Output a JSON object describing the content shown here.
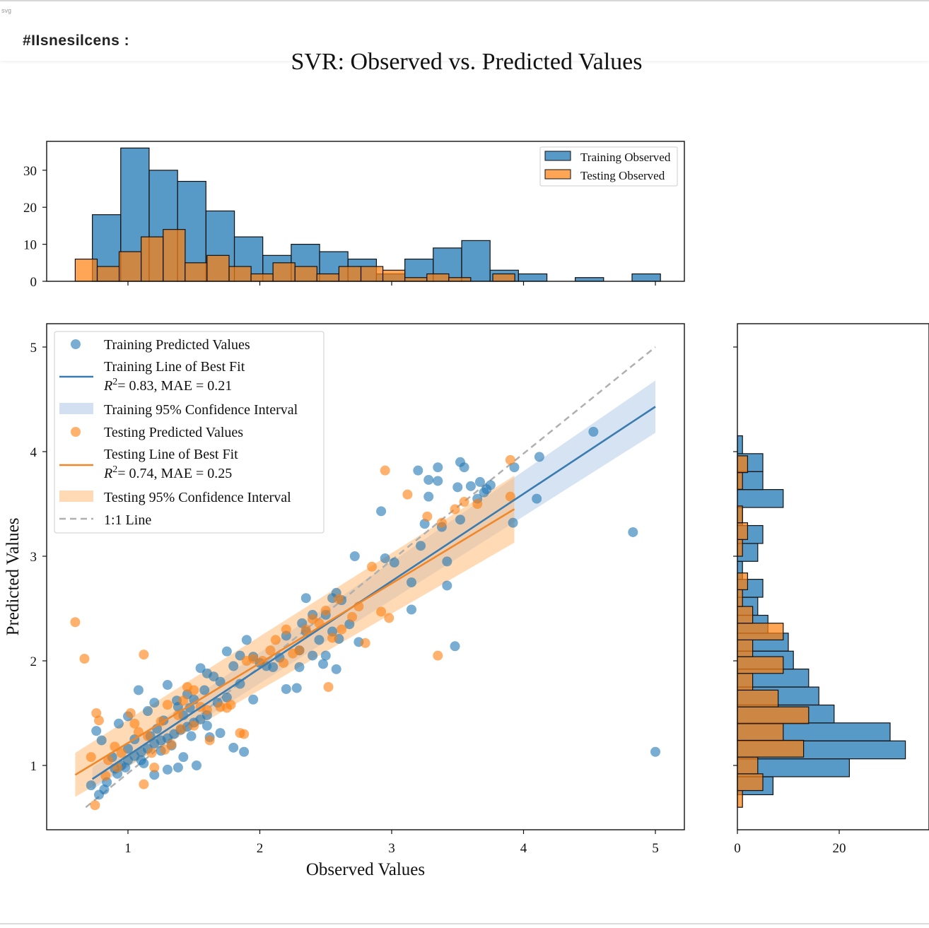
{
  "window": {
    "corner_text": "svg",
    "title": "#IIsnesilcens :"
  },
  "chart_data": {
    "type": "scatter",
    "title": "SVR: Observed vs. Predicted Values",
    "xlabel": "Observed Values",
    "ylabel": "Predicted Values",
    "xlim": [
      0.4,
      5.2
    ],
    "ylim": [
      0.35,
      5.2
    ],
    "xticks": [
      1,
      2,
      3,
      4,
      5
    ],
    "yticks": [
      1,
      2,
      3,
      4,
      5
    ],
    "grid": false,
    "colors": {
      "training": "#1f77b4",
      "testing": "#ff7f0e",
      "training_ci": "#aec7e8",
      "testing_ci": "#ffbb78",
      "one_to_one": "#b0b0b0"
    },
    "legend": {
      "placement": "upper-left",
      "entries": [
        {
          "label": "Training Predicted Values"
        },
        {
          "label": "Training Line of Best Fit",
          "stats": "= 0.83, MAE = 0.21"
        },
        {
          "label": "Training 95% Confidence Interval"
        },
        {
          "label": "Testing Predicted Values"
        },
        {
          "label": "Testing Line of Best Fit",
          "stats": "= 0.74, MAE = 0.25"
        },
        {
          "label": "Testing 95% Confidence Interval"
        },
        {
          "label": "1:1 Line"
        }
      ]
    },
    "training_fit": {
      "x": [
        0.73,
        5.0
      ],
      "y": [
        0.87,
        4.43
      ]
    },
    "testing_fit": {
      "x": [
        0.6,
        3.93
      ],
      "y": [
        0.91,
        3.45
      ]
    },
    "one_to_one": {
      "x": [
        0.68,
        5.0
      ],
      "y": [
        0.6,
        5.0
      ]
    },
    "training_ci": {
      "x": [
        0.73,
        5.0
      ],
      "upper": [
        0.98,
        4.68
      ],
      "lower": [
        0.77,
        4.18
      ]
    },
    "testing_ci": {
      "x": [
        0.6,
        3.93
      ],
      "upper": [
        1.12,
        3.77
      ],
      "lower": [
        0.7,
        3.13
      ]
    },
    "training_points": [
      [
        0.72,
        0.81
      ],
      [
        0.78,
        0.72
      ],
      [
        0.82,
        0.77
      ],
      [
        0.84,
        0.84
      ],
      [
        0.9,
        0.97
      ],
      [
        0.95,
        1.0
      ],
      [
        1.0,
        1.05
      ],
      [
        1.05,
        1.09
      ],
      [
        1.1,
        1.13
      ],
      [
        1.15,
        1.16
      ],
      [
        1.2,
        1.21
      ],
      [
        1.25,
        1.24
      ],
      [
        1.3,
        1.26
      ],
      [
        1.35,
        1.3
      ],
      [
        1.4,
        1.34
      ],
      [
        1.45,
        1.37
      ],
      [
        1.5,
        1.41
      ],
      [
        1.55,
        1.44
      ],
      [
        1.6,
        1.48
      ],
      [
        0.76,
        1.33
      ],
      [
        0.8,
        1.24
      ],
      [
        0.93,
        1.4
      ],
      [
        1.0,
        1.47
      ],
      [
        1.08,
        1.72
      ],
      [
        1.15,
        1.52
      ],
      [
        1.2,
        1.6
      ],
      [
        1.3,
        1.77
      ],
      [
        1.38,
        1.56
      ],
      [
        1.45,
        1.68
      ],
      [
        1.55,
        1.93
      ],
      [
        1.65,
        1.85
      ],
      [
        1.5,
        1.63
      ],
      [
        0.92,
        0.92
      ],
      [
        1.0,
        1.16
      ],
      [
        1.1,
        1.05
      ],
      [
        1.2,
        0.91
      ],
      [
        1.25,
        1.14
      ],
      [
        1.3,
        0.96
      ],
      [
        1.38,
        0.98
      ],
      [
        1.42,
        1.08
      ],
      [
        1.48,
        1.28
      ],
      [
        1.52,
        1.0
      ],
      [
        1.6,
        1.38
      ],
      [
        1.62,
        1.27
      ],
      [
        1.7,
        1.31
      ],
      [
        1.8,
        1.17
      ],
      [
        1.88,
        1.13
      ],
      [
        1.95,
        1.63
      ],
      [
        1.75,
        1.65
      ],
      [
        1.7,
        1.8
      ],
      [
        1.8,
        1.95
      ],
      [
        1.85,
        2.05
      ],
      [
        1.9,
        2.2
      ],
      [
        1.75,
        2.09
      ],
      [
        1.95,
        2.04
      ],
      [
        2.0,
        1.98
      ],
      [
        2.1,
        1.94
      ],
      [
        2.2,
        1.73
      ],
      [
        2.28,
        1.74
      ],
      [
        2.15,
        2.03
      ],
      [
        2.2,
        2.24
      ],
      [
        2.3,
        2.1
      ],
      [
        2.32,
        2.36
      ],
      [
        2.35,
        2.28
      ],
      [
        2.4,
        2.44
      ],
      [
        2.45,
        2.2
      ],
      [
        2.5,
        2.44
      ],
      [
        2.55,
        2.28
      ],
      [
        2.58,
        2.65
      ],
      [
        2.62,
        2.58
      ],
      [
        2.68,
        2.35
      ],
      [
        2.55,
        2.6
      ],
      [
        2.6,
        2.21
      ],
      [
        2.75,
        2.18
      ],
      [
        2.72,
        3.0
      ],
      [
        2.35,
        2.6
      ],
      [
        2.4,
        2.05
      ],
      [
        2.5,
        2.05
      ],
      [
        2.3,
        1.94
      ],
      [
        2.58,
        1.92
      ],
      [
        2.95,
        2.98
      ],
      [
        3.02,
        2.94
      ],
      [
        2.92,
        3.43
      ],
      [
        3.15,
        2.75
      ],
      [
        3.22,
        3.1
      ],
      [
        3.25,
        3.31
      ],
      [
        3.28,
        3.57
      ],
      [
        3.35,
        3.72
      ],
      [
        3.38,
        3.28
      ],
      [
        3.42,
        2.95
      ],
      [
        3.42,
        2.72
      ],
      [
        3.5,
        3.66
      ],
      [
        3.52,
        3.35
      ],
      [
        3.55,
        3.85
      ],
      [
        3.6,
        3.67
      ],
      [
        3.65,
        3.55
      ],
      [
        3.67,
        3.71
      ],
      [
        3.7,
        3.61
      ],
      [
        3.72,
        3.64
      ],
      [
        3.75,
        3.68
      ],
      [
        3.2,
        3.82
      ],
      [
        3.28,
        3.73
      ],
      [
        3.35,
        3.85
      ],
      [
        3.52,
        3.9
      ],
      [
        3.92,
        3.32
      ],
      [
        3.93,
        3.85
      ],
      [
        4.1,
        3.55
      ],
      [
        4.12,
        3.95
      ],
      [
        4.53,
        4.19
      ],
      [
        4.83,
        3.23
      ],
      [
        5.0,
        1.13
      ],
      [
        3.48,
        2.14
      ],
      [
        3.15,
        2.49
      ],
      [
        2.48,
        1.97
      ],
      [
        1.12,
        1.02
      ],
      [
        1.22,
        1.35
      ],
      [
        1.33,
        1.19
      ],
      [
        1.05,
        1.25
      ],
      [
        0.98,
        0.98
      ],
      [
        0.88,
        1.08
      ],
      [
        1.17,
        1.28
      ],
      [
        1.27,
        1.43
      ],
      [
        1.42,
        1.48
      ],
      [
        1.37,
        1.62
      ],
      [
        1.47,
        1.55
      ],
      [
        1.58,
        1.72
      ],
      [
        1.68,
        1.6
      ],
      [
        1.85,
        1.78
      ],
      [
        2.05,
        1.95
      ],
      [
        1.6,
        1.88
      ]
    ],
    "testing_points": [
      [
        0.6,
        2.37
      ],
      [
        0.67,
        2.02
      ],
      [
        0.72,
        1.08
      ],
      [
        0.76,
        1.5
      ],
      [
        0.78,
        1.43
      ],
      [
        0.75,
        0.62
      ],
      [
        0.83,
        0.9
      ],
      [
        0.9,
        1.18
      ],
      [
        0.95,
        1.12
      ],
      [
        1.02,
        1.5
      ],
      [
        1.08,
        1.32
      ],
      [
        1.12,
        2.06
      ],
      [
        1.12,
        0.82
      ],
      [
        1.18,
        1.12
      ],
      [
        1.2,
        0.98
      ],
      [
        1.25,
        1.42
      ],
      [
        1.3,
        1.58
      ],
      [
        1.33,
        1.2
      ],
      [
        1.38,
        1.48
      ],
      [
        1.42,
        1.62
      ],
      [
        1.45,
        1.75
      ],
      [
        1.5,
        1.72
      ],
      [
        1.55,
        1.56
      ],
      [
        1.62,
        1.24
      ],
      [
        1.7,
        1.56
      ],
      [
        1.75,
        1.55
      ],
      [
        1.78,
        1.58
      ],
      [
        1.85,
        1.31
      ],
      [
        1.9,
        2.0
      ],
      [
        1.95,
        2.02
      ],
      [
        2.02,
        2.0
      ],
      [
        2.08,
        2.1
      ],
      [
        2.12,
        2.2
      ],
      [
        2.18,
        1.98
      ],
      [
        2.25,
        2.07
      ],
      [
        2.3,
        2.1
      ],
      [
        2.35,
        2.3
      ],
      [
        2.4,
        2.4
      ],
      [
        2.45,
        2.36
      ],
      [
        2.5,
        2.48
      ],
      [
        2.55,
        2.22
      ],
      [
        2.62,
        2.3
      ],
      [
        2.7,
        2.42
      ],
      [
        2.75,
        2.52
      ],
      [
        2.8,
        2.17
      ],
      [
        2.85,
        2.9
      ],
      [
        2.92,
        2.47
      ],
      [
        2.98,
        2.41
      ],
      [
        2.52,
        1.75
      ],
      [
        2.95,
        3.82
      ],
      [
        3.12,
        3.59
      ],
      [
        3.27,
        3.38
      ],
      [
        3.35,
        2.05
      ],
      [
        3.38,
        3.32
      ],
      [
        3.48,
        3.45
      ],
      [
        3.55,
        3.52
      ],
      [
        3.65,
        3.5
      ],
      [
        3.9,
        3.92
      ],
      [
        3.9,
        3.57
      ],
      [
        1.88,
        1.3
      ],
      [
        1.6,
        1.53
      ],
      [
        1.05,
        1.4
      ],
      [
        0.92,
        0.98
      ],
      [
        1.15,
        1.28
      ],
      [
        1.28,
        1.15
      ],
      [
        1.4,
        1.35
      ],
      [
        1.5,
        1.38
      ],
      [
        2.2,
        2.3
      ],
      [
        2.6,
        2.59
      ],
      [
        0.85,
        1.05
      ]
    ],
    "top_hist": {
      "type": "bar",
      "bin_width": 0.2154,
      "training_bin_starts": [
        0.73,
        0.945,
        1.161,
        1.376,
        1.592,
        1.807,
        2.023,
        2.238,
        2.453,
        2.669,
        2.884,
        3.1,
        3.315,
        3.531,
        3.746,
        3.962,
        4.177,
        4.392,
        4.608,
        4.823
      ],
      "training_counts": [
        18,
        36,
        30,
        27,
        19,
        12,
        7,
        10,
        8,
        6,
        2,
        6,
        9,
        11,
        3,
        2,
        0,
        1,
        0,
        2
      ],
      "testing_bin_starts": [
        0.6,
        0.767,
        0.933,
        1.1,
        1.267,
        1.433,
        1.6,
        1.767,
        1.933,
        2.1,
        2.267,
        2.433,
        2.6,
        2.767,
        2.933,
        3.1,
        3.267,
        3.433,
        3.6,
        3.767
      ],
      "testing_counts": [
        6,
        4,
        8,
        12,
        14,
        5,
        7,
        4,
        2,
        5,
        4,
        2,
        4,
        4,
        3,
        1,
        2,
        1,
        0,
        2
      ],
      "yticks": [
        0,
        10,
        20,
        30
      ],
      "ylim": [
        0,
        37.8
      ],
      "legend": {
        "placement": "upper-right",
        "entries": [
          "Training Observed",
          "Testing Observed"
        ]
      }
    },
    "right_hist": {
      "type": "bar",
      "orientation": "horizontal",
      "bin_height": 0.1716,
      "training_bin_starts": [
        0.72,
        0.892,
        1.063,
        1.235,
        1.406,
        1.578,
        1.75,
        1.921,
        2.093,
        2.264,
        2.436,
        2.608,
        2.779,
        2.951,
        3.122,
        3.294,
        3.466,
        3.637,
        3.809,
        3.98
      ],
      "training_counts": [
        7,
        22,
        33,
        30,
        19,
        16,
        14,
        11,
        10,
        6,
        4,
        5,
        1,
        4,
        5,
        1,
        9,
        5,
        5,
        1
      ],
      "testing_bin_starts": [
        0.6,
        0.76,
        0.92,
        1.08,
        1.24,
        1.4,
        1.56,
        1.72,
        1.88,
        2.04,
        2.2,
        2.36,
        2.52,
        2.68,
        2.84,
        3.0,
        3.16,
        3.32,
        3.48,
        3.64,
        3.8
      ],
      "testing_counts": [
        1,
        5,
        4,
        13,
        9,
        14,
        8,
        3,
        9,
        3,
        9,
        3,
        1,
        2,
        0,
        1,
        2,
        1,
        0,
        1,
        2
      ],
      "xticks": [
        0,
        20
      ],
      "xlim": [
        0,
        33
      ]
    }
  }
}
